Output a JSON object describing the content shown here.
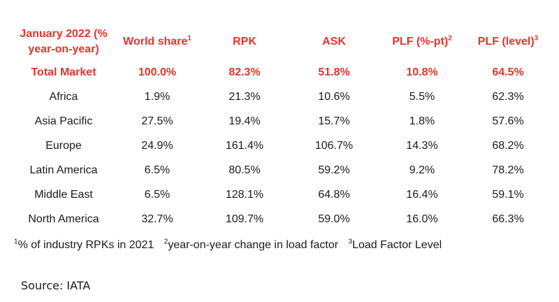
{
  "headers": {
    "region": "January 2022 (% year-on-year)",
    "world_share": "World share",
    "world_share_sup": "1",
    "rpk": "RPK",
    "ask": "ASK",
    "plf_pt": "PLF (%-pt)",
    "plf_pt_sup": "2",
    "plf_level": "PLF (level)",
    "plf_level_sup": "3"
  },
  "rows": [
    {
      "region": "Total Market",
      "world_share": "100.0%",
      "rpk": "82.3%",
      "ask": "51.8%",
      "plf_pt": "10.8%",
      "plf_level": "64.5%"
    },
    {
      "region": "Africa",
      "world_share": "1.9%",
      "rpk": "21.3%",
      "ask": "10.6%",
      "plf_pt": "5.5%",
      "plf_level": "62.3%"
    },
    {
      "region": "Asia Pacific",
      "world_share": "27.5%",
      "rpk": "19.4%",
      "ask": "15.7%",
      "plf_pt": "1.8%",
      "plf_level": "57.6%"
    },
    {
      "region": "Europe",
      "world_share": "24.9%",
      "rpk": "161.4%",
      "ask": "106.7%",
      "plf_pt": "14.3%",
      "plf_level": "68.2%"
    },
    {
      "region": "Latin America",
      "world_share": "6.5%",
      "rpk": "80.5%",
      "ask": "59.2%",
      "plf_pt": "9.2%",
      "plf_level": "78.2%"
    },
    {
      "region": "Middle East",
      "world_share": "6.5%",
      "rpk": "128.1%",
      "ask": "64.8%",
      "plf_pt": "16.4%",
      "plf_level": "59.1%"
    },
    {
      "region": "North America",
      "world_share": "32.7%",
      "rpk": "109.7%",
      "ask": "59.0%",
      "plf_pt": "16.0%",
      "plf_level": "66.3%"
    }
  ],
  "footnotes": [
    {
      "sup": "1",
      "text": "% of industry RPKs in 2021"
    },
    {
      "sup": "2",
      "text": "year-on-year change in load factor"
    },
    {
      "sup": "3",
      "text": "Load Factor Level"
    }
  ],
  "source": "Source: IATA",
  "colors": {
    "accent": "#e5342a",
    "text": "#1a1a1a"
  }
}
